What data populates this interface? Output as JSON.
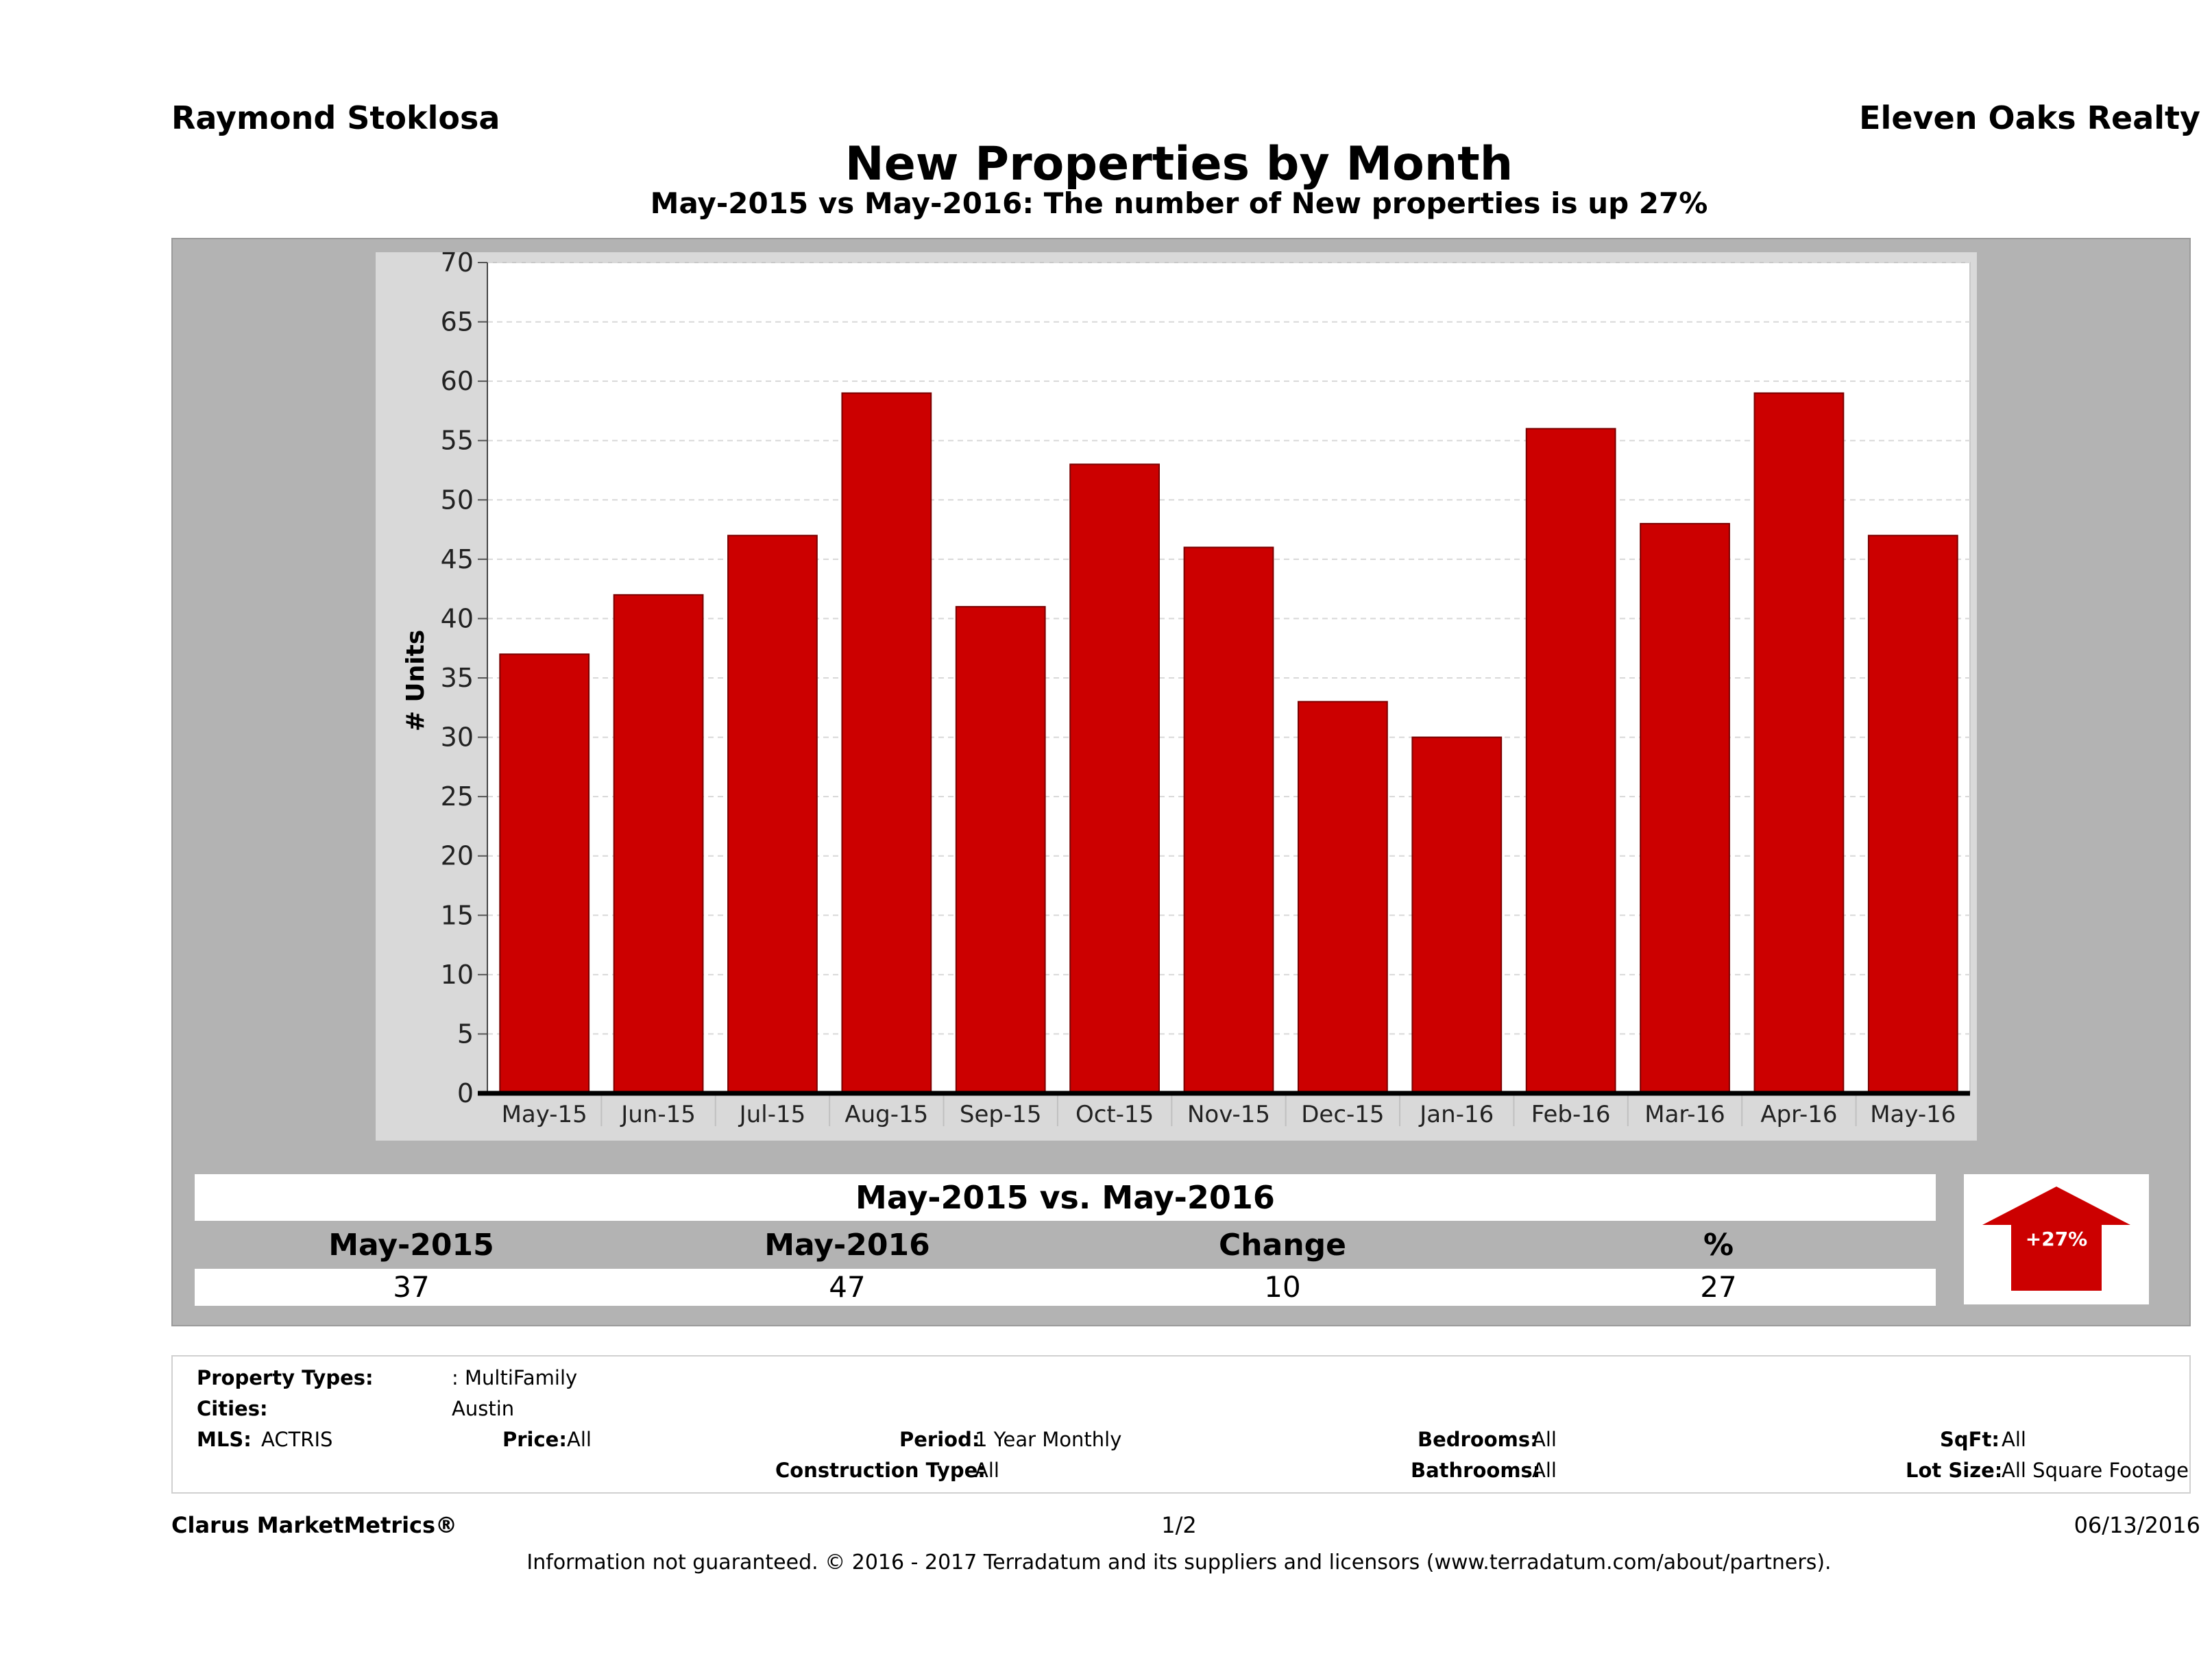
{
  "header": {
    "agent_name": "Raymond Stoklosa",
    "company": "Eleven Oaks Realty",
    "title": "New Properties by Month",
    "subtitle": "May-2015 vs May-2016: The number of New  properties is up 27%"
  },
  "chart_data": {
    "type": "bar",
    "title": "New Properties by Month",
    "xlabel": "",
    "ylabel": "# Units",
    "ylim": [
      0,
      70
    ],
    "ytick_step": 5,
    "grid": true,
    "categories": [
      "May-15",
      "Jun-15",
      "Jul-15",
      "Aug-15",
      "Sep-15",
      "Oct-15",
      "Nov-15",
      "Dec-15",
      "Jan-16",
      "Feb-16",
      "Mar-16",
      "Apr-16",
      "May-16"
    ],
    "values": [
      37,
      42,
      47,
      59,
      41,
      53,
      46,
      33,
      30,
      56,
      48,
      59,
      47
    ],
    "bar_color": "#cc0000"
  },
  "comparison": {
    "title": "May-2015 vs. May-2016",
    "headers": [
      "May-2015",
      "May-2016",
      "Change",
      "%"
    ],
    "values": [
      "37",
      "47",
      "10",
      "27"
    ],
    "badge": "+27%",
    "badge_color": "#cc0000"
  },
  "criteria": {
    "property_types_label": "Property Types:",
    "property_types_value": ": MultiFamily",
    "cities_label": "Cities:",
    "cities_value": "Austin",
    "mls_label": "MLS:",
    "mls_value": "ACTRIS",
    "price_label": "Price:",
    "price_value": "All",
    "period_label": "Period:",
    "period_value": "1 Year Monthly",
    "construction_label": "Construction Type:",
    "construction_value": "All",
    "bedrooms_label": "Bedrooms:",
    "bedrooms_value": "All",
    "bathrooms_label": "Bathrooms:",
    "bathrooms_value": "All",
    "sqft_label": "SqFt:",
    "sqft_value": "All",
    "lotsize_label": "Lot Size:",
    "lotsize_value": "All Square Footage"
  },
  "footer": {
    "brand": "Clarus MarketMetrics®",
    "page": "1/2",
    "date": "06/13/2016",
    "note": "Information not guaranteed. © 2016 - 2017 Terradatum and its suppliers and licensors (www.terradatum.com/about/partners)."
  }
}
